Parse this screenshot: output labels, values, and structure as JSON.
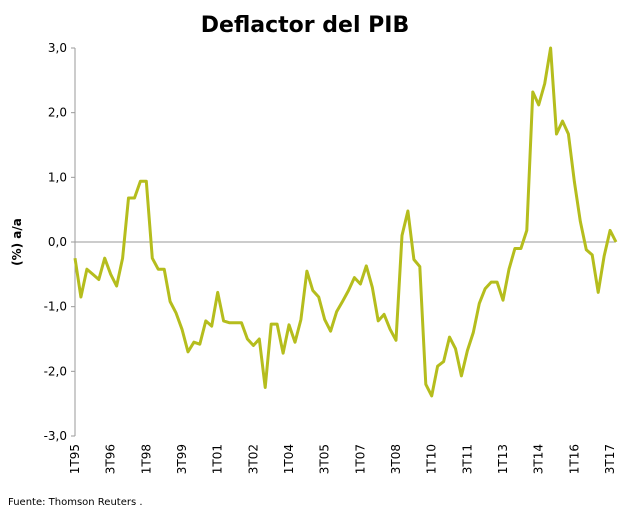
{
  "chart_data": {
    "type": "line",
    "title": "Deflactor del PIB",
    "ylabel": "(%) a/a",
    "xlabel": "",
    "ylim": [
      -3,
      3
    ],
    "yticks": [
      3,
      2,
      1,
      0,
      -1,
      -2,
      -3
    ],
    "ytick_labels": [
      "3,0",
      "2,0",
      "1,0",
      "0,0",
      "-1,0",
      "-2,0",
      "-3,0"
    ],
    "xtick_labels": [
      "1T95",
      "3T96",
      "1T98",
      "3T99",
      "1T01",
      "3T02",
      "1T04",
      "3T05",
      "1T07",
      "3T08",
      "1T10",
      "3T11",
      "1T13",
      "3T14",
      "1T16",
      "3T17"
    ],
    "series": [
      {
        "name": "Deflactor del PIB",
        "color": "#b5bd1d",
        "values": [
          -0.25,
          -0.85,
          -0.42,
          -0.5,
          -0.58,
          -0.25,
          -0.5,
          -0.68,
          -0.25,
          0.68,
          0.68,
          0.94,
          0.94,
          -0.25,
          -0.42,
          -0.42,
          -0.92,
          -1.1,
          -1.35,
          -1.7,
          -1.55,
          -1.58,
          -1.22,
          -1.3,
          -0.78,
          -1.22,
          -1.25,
          -1.25,
          -1.25,
          -1.5,
          -1.6,
          -1.5,
          -2.25,
          -1.27,
          -1.27,
          -1.72,
          -1.28,
          -1.55,
          -1.2,
          -0.45,
          -0.75,
          -0.85,
          -1.2,
          -1.38,
          -1.08,
          -0.92,
          -0.75,
          -0.55,
          -0.65,
          -0.37,
          -0.7,
          -1.22,
          -1.12,
          -1.35,
          -1.52,
          0.1,
          0.48,
          -0.27,
          -0.38,
          -2.2,
          -2.38,
          -1.92,
          -1.85,
          -1.47,
          -1.65,
          -2.07,
          -1.68,
          -1.4,
          -0.95,
          -0.72,
          -0.62,
          -0.62,
          -0.9,
          -0.42,
          -0.1,
          -0.1,
          0.18,
          2.32,
          2.12,
          2.45,
          3.0,
          1.67,
          1.87,
          1.67,
          0.93,
          0.32,
          -0.12,
          -0.2,
          -0.78,
          -0.22,
          0.18,
          0.0
        ]
      }
    ]
  },
  "source": "Fuente: Thomson Reuters ."
}
